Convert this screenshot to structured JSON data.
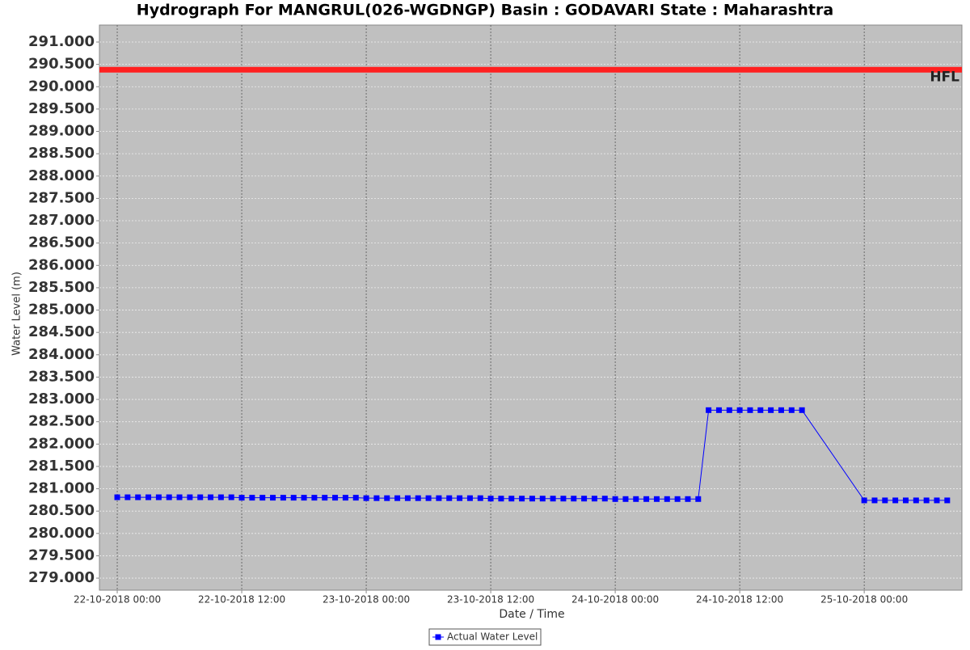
{
  "chart_data": {
    "type": "line",
    "title": "Hydrograph For MANGRUL(026-WGDNGP) Basin : GODAVARI State : Maharashtra",
    "ylabel": "Water Level (m)",
    "xlabel": "Date / Time",
    "x": [
      "2018-10-22 00:00",
      "2018-10-22 01:00",
      "2018-10-22 02:00",
      "2018-10-22 03:00",
      "2018-10-22 04:00",
      "2018-10-22 05:00",
      "2018-10-22 06:00",
      "2018-10-22 07:00",
      "2018-10-22 08:00",
      "2018-10-22 09:00",
      "2018-10-22 10:00",
      "2018-10-22 11:00",
      "2018-10-22 12:00",
      "2018-10-22 13:00",
      "2018-10-22 14:00",
      "2018-10-22 15:00",
      "2018-10-22 16:00",
      "2018-10-22 17:00",
      "2018-10-22 18:00",
      "2018-10-22 19:00",
      "2018-10-22 20:00",
      "2018-10-22 21:00",
      "2018-10-22 22:00",
      "2018-10-22 23:00",
      "2018-10-23 00:00",
      "2018-10-23 01:00",
      "2018-10-23 02:00",
      "2018-10-23 03:00",
      "2018-10-23 04:00",
      "2018-10-23 05:00",
      "2018-10-23 06:00",
      "2018-10-23 07:00",
      "2018-10-23 08:00",
      "2018-10-23 09:00",
      "2018-10-23 10:00",
      "2018-10-23 11:00",
      "2018-10-23 12:00",
      "2018-10-23 13:00",
      "2018-10-23 14:00",
      "2018-10-23 15:00",
      "2018-10-23 16:00",
      "2018-10-23 17:00",
      "2018-10-23 18:00",
      "2018-10-23 19:00",
      "2018-10-23 20:00",
      "2018-10-23 21:00",
      "2018-10-23 22:00",
      "2018-10-23 23:00",
      "2018-10-24 00:00",
      "2018-10-24 01:00",
      "2018-10-24 02:00",
      "2018-10-24 03:00",
      "2018-10-24 04:00",
      "2018-10-24 05:00",
      "2018-10-24 06:00",
      "2018-10-24 07:00",
      "2018-10-24 08:00",
      "2018-10-24 09:00",
      "2018-10-24 10:00",
      "2018-10-24 11:00",
      "2018-10-24 12:00",
      "2018-10-24 13:00",
      "2018-10-24 14:00",
      "2018-10-24 15:00",
      "2018-10-24 16:00",
      "2018-10-24 17:00",
      "2018-10-24 18:00",
      "2018-10-25 00:00",
      "2018-10-25 01:00",
      "2018-10-25 02:00",
      "2018-10-25 03:00",
      "2018-10-25 04:00",
      "2018-10-25 05:00",
      "2018-10-25 06:00",
      "2018-10-25 07:00",
      "2018-10-25 08:00"
    ],
    "series": [
      {
        "name": "Actual Water Level",
        "color": "#0000ff",
        "values": [
          280.81,
          280.81,
          280.81,
          280.81,
          280.81,
          280.81,
          280.81,
          280.81,
          280.81,
          280.81,
          280.81,
          280.81,
          280.8,
          280.8,
          280.8,
          280.8,
          280.8,
          280.8,
          280.8,
          280.8,
          280.8,
          280.8,
          280.8,
          280.8,
          280.79,
          280.79,
          280.79,
          280.79,
          280.79,
          280.79,
          280.79,
          280.79,
          280.79,
          280.79,
          280.79,
          280.79,
          280.78,
          280.78,
          280.78,
          280.78,
          280.78,
          280.78,
          280.78,
          280.78,
          280.78,
          280.78,
          280.78,
          280.78,
          280.77,
          280.77,
          280.77,
          280.77,
          280.77,
          280.77,
          280.77,
          280.77,
          280.77,
          282.76,
          282.76,
          282.76,
          282.76,
          282.76,
          282.76,
          282.76,
          282.76,
          282.76,
          282.76,
          280.74,
          280.74,
          280.74,
          280.74,
          280.74,
          280.74,
          280.74,
          280.74,
          280.74
        ]
      }
    ],
    "reference_lines": [
      {
        "label": "HFL",
        "value": 290.38,
        "color": "#ff2020"
      }
    ],
    "xlim": [
      "2018-10-21 22:17",
      "2018-10-25 09:25"
    ],
    "xticks": [
      {
        "value": "2018-10-22 00:00",
        "label": "22-10-2018 00:00"
      },
      {
        "value": "2018-10-22 12:00",
        "label": "22-10-2018 12:00"
      },
      {
        "value": "2018-10-23 00:00",
        "label": "23-10-2018 00:00"
      },
      {
        "value": "2018-10-23 12:00",
        "label": "23-10-2018 12:00"
      },
      {
        "value": "2018-10-24 00:00",
        "label": "24-10-2018 00:00"
      },
      {
        "value": "2018-10-24 12:00",
        "label": "24-10-2018 12:00"
      },
      {
        "value": "2018-10-25 00:00",
        "label": "25-10-2018 00:00"
      }
    ],
    "ylim": [
      278.73,
      291.38
    ],
    "yticks": [
      {
        "value": 279,
        "label": "279.000"
      },
      {
        "value": 279.5,
        "label": "279.500"
      },
      {
        "value": 280,
        "label": "280.000"
      },
      {
        "value": 280.5,
        "label": "280.500"
      },
      {
        "value": 281,
        "label": "281.000"
      },
      {
        "value": 281.5,
        "label": "281.500"
      },
      {
        "value": 282,
        "label": "282.000"
      },
      {
        "value": 282.5,
        "label": "282.500"
      },
      {
        "value": 283,
        "label": "283.000"
      },
      {
        "value": 283.5,
        "label": "283.500"
      },
      {
        "value": 284,
        "label": "284.000"
      },
      {
        "value": 284.5,
        "label": "284.500"
      },
      {
        "value": 285,
        "label": "285.000"
      },
      {
        "value": 285.5,
        "label": "285.500"
      },
      {
        "value": 286,
        "label": "286.000"
      },
      {
        "value": 286.5,
        "label": "286.500"
      },
      {
        "value": 287,
        "label": "287.000"
      },
      {
        "value": 287.5,
        "label": "287.500"
      },
      {
        "value": 288,
        "label": "288.000"
      },
      {
        "value": 288.5,
        "label": "288.500"
      },
      {
        "value": 289,
        "label": "289.000"
      },
      {
        "value": 289.5,
        "label": "289.500"
      },
      {
        "value": 290,
        "label": "290.000"
      },
      {
        "value": 290.5,
        "label": "290.500"
      },
      {
        "value": 291,
        "label": "291.000"
      }
    ],
    "grid": true,
    "background": "#c0c0c0",
    "legend": "bottom"
  }
}
